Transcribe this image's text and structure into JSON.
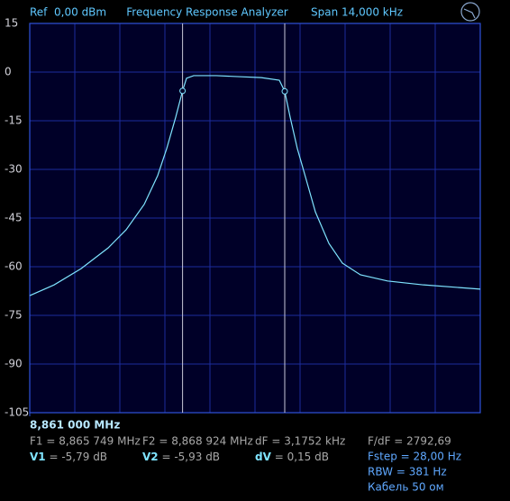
{
  "chart_data": {
    "type": "line",
    "title": "Frequency Response Analyzer",
    "annotations": [
      "Ref  0,00 dBm",
      "Span 14,000 kHz"
    ],
    "x": [
      8.861,
      8.861756,
      8.862596,
      8.863436,
      8.863996,
      8.864556,
      8.864976,
      8.865256,
      8.865536,
      8.865749,
      8.865872,
      8.866096,
      8.866796,
      8.867496,
      8.868196,
      8.868756,
      8.868924,
      8.869092,
      8.869316,
      8.869596,
      8.869876,
      8.870296,
      8.870716,
      8.871276,
      8.872116,
      8.873236,
      8.875
    ],
    "values": [
      -68.9,
      -65.6,
      -60.6,
      -54.2,
      -48.6,
      -40.8,
      -31.9,
      -23.6,
      -13.9,
      -5.79,
      -1.9,
      -1.1,
      -1.1,
      -1.4,
      -1.7,
      -2.5,
      -5.93,
      -13.9,
      -23.6,
      -33.3,
      -43.1,
      -52.8,
      -58.9,
      -62.5,
      -64.4,
      -65.6,
      -66.9
    ],
    "color": "#7fe4ff",
    "xlim": [
      8.861,
      8.875
    ],
    "xticks": [
      {
        "value": 8.861,
        "label": "8,861 000 MHz"
      }
    ],
    "ylim": [
      -105,
      15
    ],
    "yticks": [
      15,
      0,
      -15,
      -30,
      -45,
      -60,
      -75,
      -90,
      -105
    ],
    "grid": true,
    "markers": [
      {
        "x": 8.865749,
        "y": -5.79
      },
      {
        "x": 8.868924,
        "y": -5.93
      }
    ],
    "marker_color": "#c8c8d8"
  },
  "readouts": {
    "frequencies": [
      "F1 = 8,865 749 MHz",
      "F2 = 8,868 924 MHz",
      "dF = 3,1752 kHz",
      "F/dF = 2792,69"
    ],
    "levels": [
      {
        "label": "V1",
        "text": " = -5,79 dB"
      },
      {
        "label": "V2",
        "text": " = -5,93 dB"
      },
      {
        "label": "dV",
        "text": " = 0,15 dB"
      }
    ],
    "settings": [
      "Fstep = 28,00 Hz",
      "RBW = 381 Hz",
      "Кабель 50 ом"
    ]
  }
}
